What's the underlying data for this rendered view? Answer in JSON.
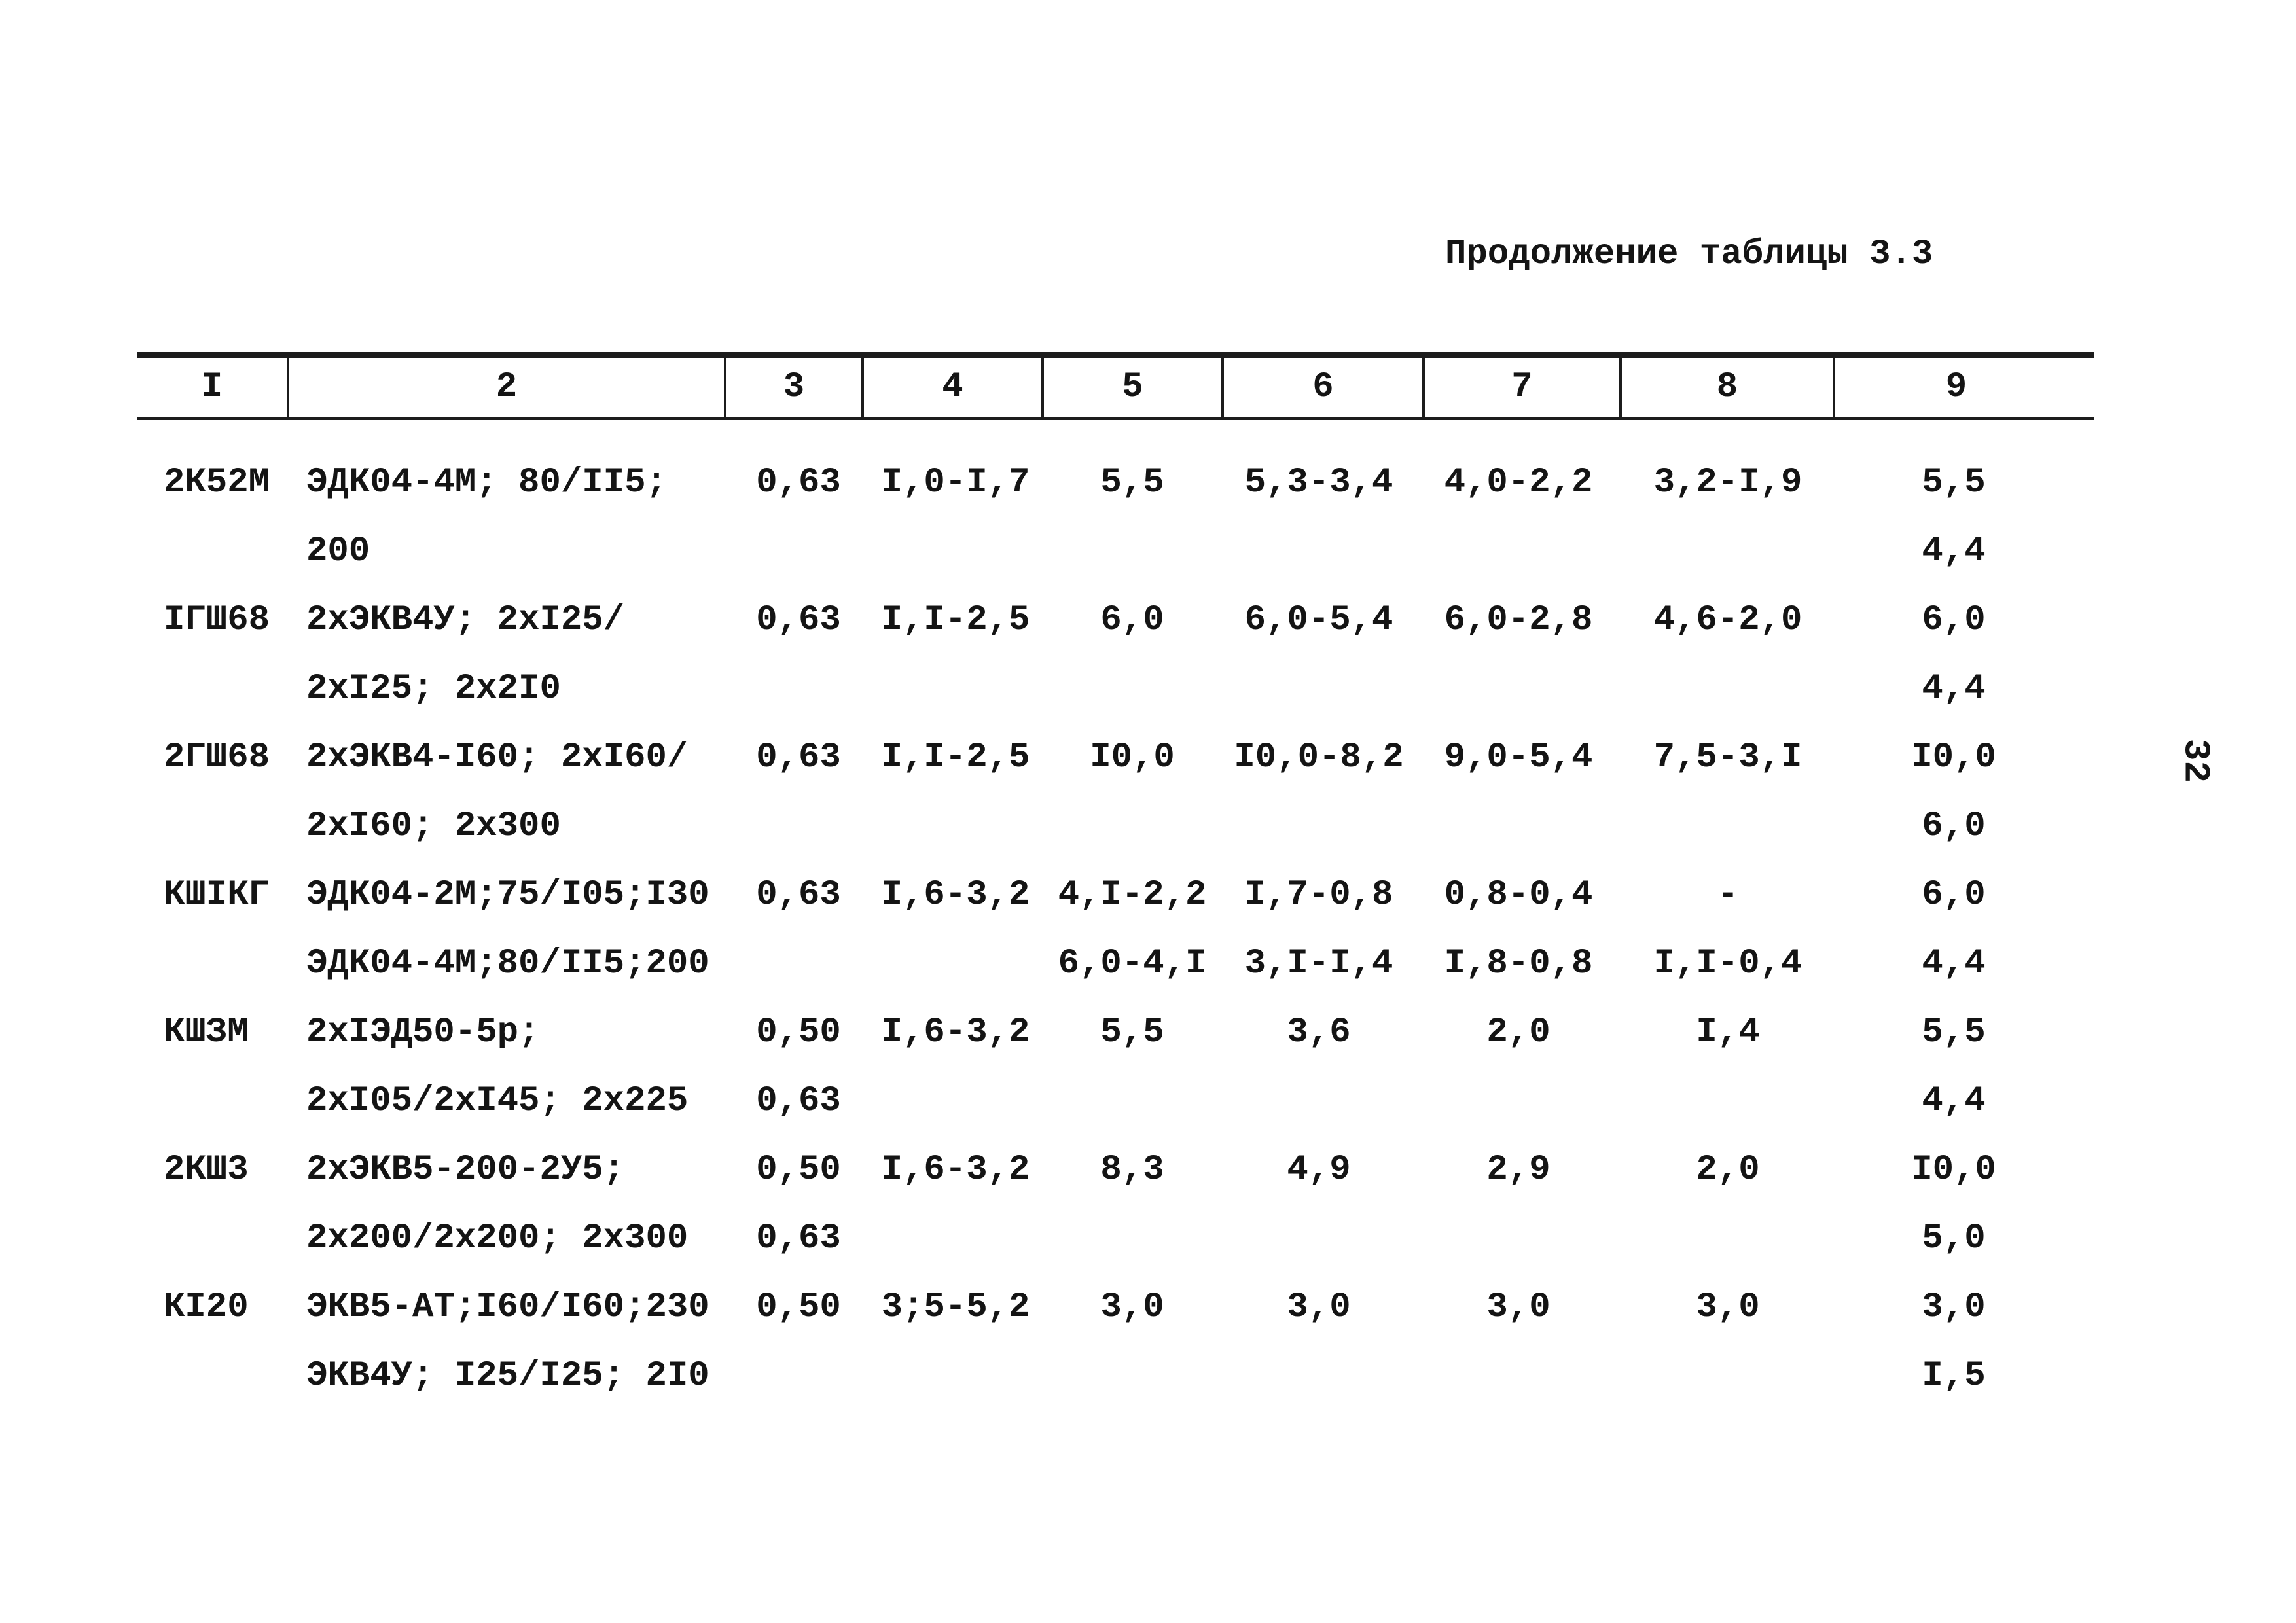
{
  "page": {
    "title": "Продолжение таблицы 3.3",
    "page_number": "32"
  },
  "table": {
    "header": [
      "I",
      "2",
      "3",
      "4",
      "5",
      "6",
      "7",
      "8",
      "9"
    ],
    "rows": [
      {
        "cells": [
          [
            "2К52М",
            ""
          ],
          [
            "ЭДК04-4М; 80/II5;",
            "200"
          ],
          [
            "0,63",
            ""
          ],
          [
            "I,0-I,7",
            ""
          ],
          [
            "5,5",
            ""
          ],
          [
            "5,3-3,4",
            ""
          ],
          [
            "4,0-2,2",
            ""
          ],
          [
            "3,2-I,9",
            ""
          ],
          [
            "5,5",
            "4,4"
          ]
        ]
      },
      {
        "cells": [
          [
            "IГШ68",
            ""
          ],
          [
            "2хЭКВ4У; 2хI25/",
            "2хI25; 2х2I0"
          ],
          [
            "0,63",
            ""
          ],
          [
            "I,I-2,5",
            ""
          ],
          [
            "6,0",
            ""
          ],
          [
            "6,0-5,4",
            ""
          ],
          [
            "6,0-2,8",
            ""
          ],
          [
            "4,6-2,0",
            ""
          ],
          [
            "6,0",
            "4,4"
          ]
        ]
      },
      {
        "cells": [
          [
            "2ГШ68",
            ""
          ],
          [
            "2хЭКВ4-I60; 2хI60/",
            "2хI60; 2х300"
          ],
          [
            "0,63",
            ""
          ],
          [
            "I,I-2,5",
            ""
          ],
          [
            "I0,0",
            ""
          ],
          [
            "I0,0-8,2",
            ""
          ],
          [
            "9,0-5,4",
            ""
          ],
          [
            "7,5-3,I",
            ""
          ],
          [
            "I0,0",
            "6,0"
          ]
        ]
      },
      {
        "cells": [
          [
            "КШIКГ",
            ""
          ],
          [
            "ЭДК04-2М;75/I05;I30",
            "ЭДК04-4М;80/II5;200"
          ],
          [
            "0,63",
            ""
          ],
          [
            "I,6-3,2",
            ""
          ],
          [
            "4,I-2,2",
            "6,0-4,I"
          ],
          [
            "I,7-0,8",
            "3,I-I,4"
          ],
          [
            "0,8-0,4",
            "I,8-0,8"
          ],
          [
            "-",
            "I,I-0,4"
          ],
          [
            "6,0",
            "4,4"
          ]
        ]
      },
      {
        "cells": [
          [
            "КШЗМ",
            ""
          ],
          [
            "2хIЭД50-5р;",
            "2хI05/2хI45; 2х225"
          ],
          [
            "0,50",
            "0,63"
          ],
          [
            "I,6-3,2",
            ""
          ],
          [
            "5,5",
            ""
          ],
          [
            "3,6",
            ""
          ],
          [
            "2,0",
            ""
          ],
          [
            "I,4",
            ""
          ],
          [
            "5,5",
            "4,4"
          ]
        ]
      },
      {
        "cells": [
          [
            "2КШ3",
            ""
          ],
          [
            "2хЭКВ5-200-2У5;",
            "2х200/2х200; 2х300"
          ],
          [
            "0,50",
            "0,63"
          ],
          [
            "I,6-3,2",
            ""
          ],
          [
            "8,3",
            ""
          ],
          [
            "4,9",
            ""
          ],
          [
            "2,9",
            ""
          ],
          [
            "2,0",
            ""
          ],
          [
            "I0,0",
            "5,0"
          ]
        ]
      },
      {
        "cells": [
          [
            "КI20",
            ""
          ],
          [
            "ЭКВ5-АТ;I60/I60;230",
            "ЭКВ4У; I25/I25; 2I0"
          ],
          [
            "0,50",
            ""
          ],
          [
            "3;5-5,2",
            ""
          ],
          [
            "3,0",
            ""
          ],
          [
            "3,0",
            ""
          ],
          [
            "3,0",
            ""
          ],
          [
            "3,0",
            ""
          ],
          [
            "3,0",
            "I,5"
          ]
        ]
      }
    ]
  }
}
